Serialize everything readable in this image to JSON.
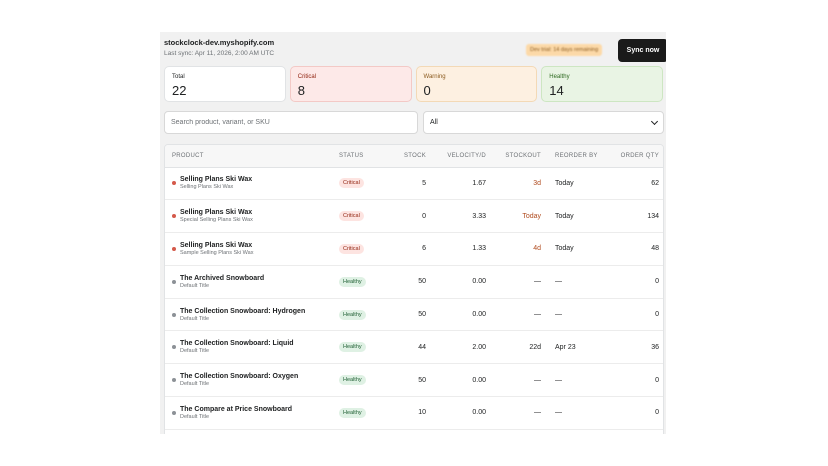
{
  "header": {
    "shop_name": "stockclock-dev.myshopify.com",
    "last_sync": "Last sync: Apr 11, 2026, 2:00 AM UTC",
    "plan_badge": "Dev trial: 14 days remaining",
    "sync_label": "Sync now"
  },
  "summary": {
    "total": {
      "label": "Total",
      "value": "22"
    },
    "critical": {
      "label": "Critical",
      "value": "8"
    },
    "warning": {
      "label": "Warning",
      "value": "0"
    },
    "healthy": {
      "label": "Healthy",
      "value": "14"
    }
  },
  "search": {
    "placeholder": "Search product, variant, or SKU"
  },
  "filter": {
    "selected": "All"
  },
  "table": {
    "columns": [
      "PRODUCT",
      "STATUS",
      "STOCK",
      "VELOCITY/D",
      "STOCKOUT",
      "REORDER BY",
      "ORDER QTY"
    ],
    "rows": [
      {
        "product": "Selling Plans Ski Wax",
        "variant": "Selling Plans Ski Wax",
        "status": "Critical",
        "stock": "5",
        "velocity": "1.67",
        "stockout": "3d",
        "reorder_by": "Today",
        "order_qty": "62"
      },
      {
        "product": "Selling Plans Ski Wax",
        "variant": "Special Selling Plans Ski Wax",
        "status": "Critical",
        "stock": "0",
        "velocity": "3.33",
        "stockout": "Today",
        "reorder_by": "Today",
        "order_qty": "134"
      },
      {
        "product": "Selling Plans Ski Wax",
        "variant": "Sample Selling Plans Ski Wax",
        "status": "Critical",
        "stock": "6",
        "velocity": "1.33",
        "stockout": "4d",
        "reorder_by": "Today",
        "order_qty": "48"
      },
      {
        "product": "The Archived Snowboard",
        "variant": "Default Title",
        "status": "Healthy",
        "stock": "50",
        "velocity": "0.00",
        "stockout": "—",
        "reorder_by": "—",
        "order_qty": "0"
      },
      {
        "product": "The Collection Snowboard: Hydrogen",
        "variant": "Default Title",
        "status": "Healthy",
        "stock": "50",
        "velocity": "0.00",
        "stockout": "—",
        "reorder_by": "—",
        "order_qty": "0"
      },
      {
        "product": "The Collection Snowboard: Liquid",
        "variant": "Default Title",
        "status": "Healthy",
        "stock": "44",
        "velocity": "2.00",
        "stockout": "22d",
        "reorder_by": "Apr 23",
        "order_qty": "36"
      },
      {
        "product": "The Collection Snowboard: Oxygen",
        "variant": "Default Title",
        "status": "Healthy",
        "stock": "50",
        "velocity": "0.00",
        "stockout": "—",
        "reorder_by": "—",
        "order_qty": "0"
      },
      {
        "product": "The Compare at Price Snowboard",
        "variant": "Default Title",
        "status": "Healthy",
        "stock": "10",
        "velocity": "0.00",
        "stockout": "—",
        "reorder_by": "—",
        "order_qty": "0"
      }
    ]
  }
}
